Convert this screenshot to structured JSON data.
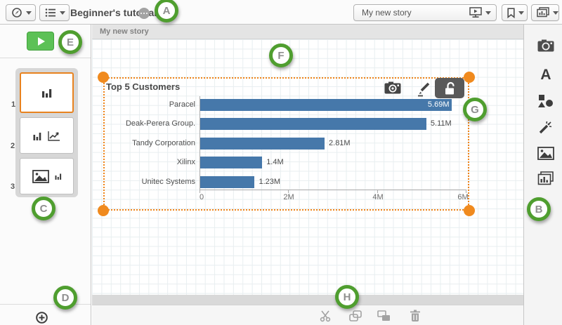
{
  "topbar": {
    "title": "Beginner's tutorial",
    "story_selector_value": "My new story"
  },
  "canvas": {
    "tab_label": "My new story"
  },
  "slide_panel": {
    "slides": [
      {
        "num": "1"
      },
      {
        "num": "2"
      },
      {
        "num": "3"
      }
    ]
  },
  "right_toolbar": {
    "text_tool_label": "A"
  },
  "chart_data": {
    "type": "bar",
    "orientation": "horizontal",
    "title": "Top 5 Customers",
    "categories": [
      "Paracel",
      "Deak-Perera Group.",
      "Tandy Corporation",
      "Xilinx",
      "Unitec Systems"
    ],
    "values": [
      5690000,
      5110000,
      2810000,
      1400000,
      1230000
    ],
    "value_labels": [
      "5.69M",
      "5.11M",
      "2.81M",
      "1.4M",
      "1.23M"
    ],
    "xlim": [
      0,
      6000000
    ],
    "x_ticks": [
      "0",
      "2M",
      "4M",
      "6M"
    ],
    "xlabel": "",
    "ylabel": "",
    "grid": false,
    "legend": false,
    "bar_color": "#4678aa"
  },
  "annotations": {
    "letters": [
      "A",
      "B",
      "C",
      "D",
      "E",
      "F",
      "G",
      "H"
    ]
  },
  "colors": {
    "bar": "#4678aa",
    "selection_orange": "#ef8318",
    "annotation_green": "#4f9e2f",
    "play_green": "#5cc156",
    "selected_thumb_border": "#e8821e"
  }
}
